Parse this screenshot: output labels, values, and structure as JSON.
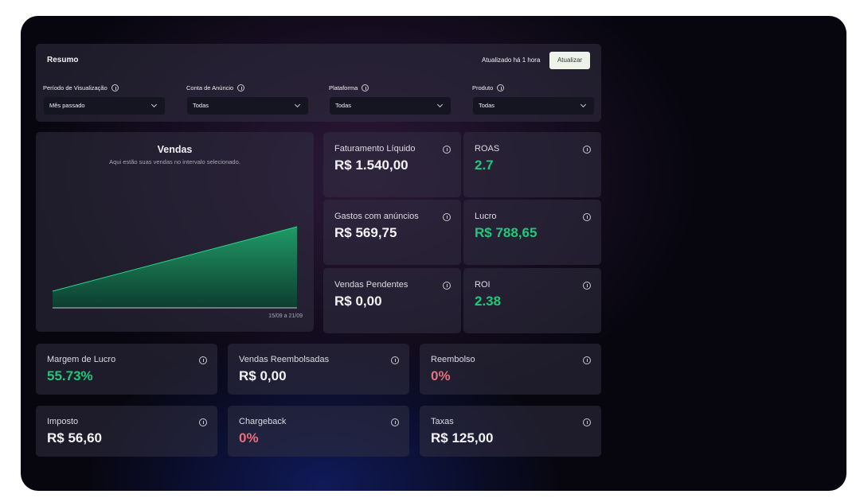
{
  "header": {
    "title": "Resumo",
    "updated": "Atualizado há 1 hora",
    "button": "Atualizar"
  },
  "filters": [
    {
      "label": "Período de Visualização",
      "value": "Mês passado"
    },
    {
      "label": "Conta de Anúncio",
      "value": "Todas"
    },
    {
      "label": "Plataforma",
      "value": "Todas"
    },
    {
      "label": "Produto",
      "value": "Todas"
    }
  ],
  "sales_card": {
    "title": "Vendas",
    "subtitle": "Aqui estão suas vendas no intervalo selecionado.",
    "date_range": "15/09 a 21/09"
  },
  "metrics": [
    {
      "label": "Faturamento Líquido",
      "value": "R$ 1.540,00",
      "color": "#f2f2f4"
    },
    {
      "label": "ROAS",
      "value": "2.7",
      "color": "#22c77a"
    },
    {
      "label": "Gastos com anúncios",
      "value": "R$ 569,75",
      "color": "#f2f2f4"
    },
    {
      "label": "Lucro",
      "value": "R$ 788,65",
      "color": "#22c77a"
    },
    {
      "label": "Vendas Pendentes",
      "value": "R$ 0,00",
      "color": "#f2f2f4"
    },
    {
      "label": "ROI",
      "value": "2.38",
      "color": "#22c77a"
    },
    {
      "label": "Margem de Lucro",
      "value": "55.73%",
      "color": "#22c77a"
    },
    {
      "label": "Vendas Reembolsadas",
      "value": "R$ 0,00",
      "color": "#f2f2f4"
    },
    {
      "label": "Reembolso",
      "value": "0%",
      "color": "#e5707a"
    },
    {
      "label": "Imposto",
      "value": "R$ 56,60",
      "color": "#f2f2f4"
    },
    {
      "label": "Chargeback",
      "value": "0%",
      "color": "#e5707a"
    },
    {
      "label": "Taxas",
      "value": "R$ 125,00",
      "color": "#f2f2f4"
    }
  ]
}
